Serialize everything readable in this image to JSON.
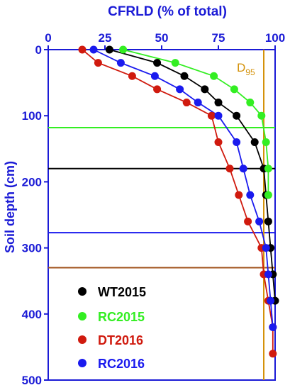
{
  "chart_data": {
    "type": "scatter",
    "title": "CFRLD (% of total)",
    "xlabel": "CFRLD (% of total)",
    "ylabel": "Soil depth (cm)",
    "xlim": [
      0,
      100
    ],
    "ylim": [
      0,
      500
    ],
    "y_inverted": true,
    "x_axis_position": "top",
    "x_ticks": [
      "0",
      "25",
      "50",
      "75",
      "100"
    ],
    "y_ticks": [
      "0",
      "100",
      "200",
      "300",
      "400",
      "500"
    ],
    "legend_position": "bottom-left",
    "axis_color": "#1b1bd6",
    "series": [
      {
        "name": "WT2015",
        "color": "#000000",
        "depths": [
          0,
          20,
          40,
          60,
          80,
          100,
          140,
          180,
          220,
          260,
          300,
          340,
          380
        ],
        "values": [
          27,
          48,
          60,
          69,
          75,
          83,
          91,
          95,
          96,
          97,
          98,
          99,
          100
        ]
      },
      {
        "name": "RC2015",
        "color": "#33ee22",
        "depths": [
          0,
          20,
          40,
          60,
          80,
          100,
          140,
          180,
          220
        ],
        "values": [
          33,
          56,
          73,
          82,
          89,
          94,
          96,
          97,
          97
        ]
      },
      {
        "name": "DT2016",
        "color": "#d01a0e",
        "depths": [
          0,
          20,
          40,
          60,
          80,
          100,
          140,
          180,
          220,
          260,
          300,
          340,
          380,
          420,
          460
        ],
        "values": [
          15,
          22,
          37,
          48,
          61,
          72,
          75,
          80,
          84,
          88,
          94,
          95,
          97,
          99,
          99
        ]
      },
      {
        "name": "RC2016",
        "color": "#1a1aee",
        "depths": [
          0,
          20,
          40,
          60,
          80,
          100,
          140,
          180,
          220,
          260,
          300,
          340,
          380,
          420
        ],
        "values": [
          20,
          32,
          47,
          58,
          66,
          75,
          83,
          86,
          89,
          93,
          96,
          97,
          98,
          99
        ]
      }
    ],
    "reference_lines": [
      {
        "orientation": "horizontal",
        "y": 118,
        "color": "#33ee22"
      },
      {
        "orientation": "horizontal",
        "y": 180,
        "color": "#000000"
      },
      {
        "orientation": "horizontal",
        "y": 277,
        "color": "#1a1aee"
      },
      {
        "orientation": "horizontal",
        "y": 330,
        "color": "#a0521a"
      },
      {
        "orientation": "vertical",
        "x": 95,
        "color": "#d4920a",
        "label": "D",
        "label_sub": "95"
      }
    ]
  }
}
